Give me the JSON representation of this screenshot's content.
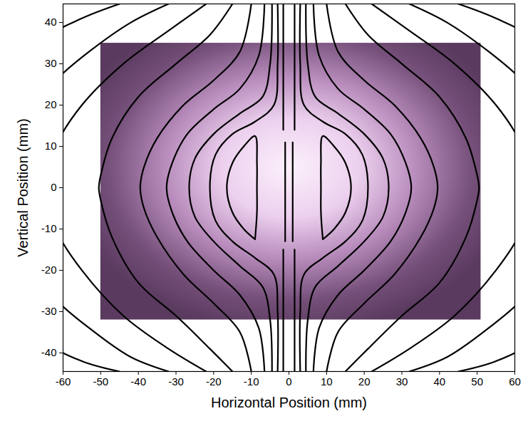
{
  "chart_data": {
    "type": "line",
    "xlabel": "Horizontal Position (mm)",
    "ylabel": "Vertical Position (mm)",
    "xlim": [
      -60,
      60
    ],
    "ylim": [
      -44.5,
      44.5
    ],
    "xticks": [
      -60,
      -50,
      -40,
      -30,
      -20,
      -10,
      0,
      10,
      20,
      30,
      40,
      50,
      60
    ],
    "yticks": [
      -40,
      -30,
      -20,
      -10,
      0,
      10,
      20,
      30,
      40
    ],
    "grid": false,
    "color": "#000000",
    "image": {
      "x": [
        -50,
        51
      ],
      "y": [
        -32,
        35
      ]
    },
    "series": [
      {
        "x": [
          9,
          12,
          15,
          16.5,
          15,
          12,
          9,
          8.5,
          8.5,
          8.5,
          9
        ],
        "y": [
          -12.5,
          -10,
          -6,
          0,
          6,
          10,
          12.5,
          6,
          0,
          -6,
          -12.5
        ]
      },
      {
        "x": [
          -9,
          -12,
          -15,
          -16.5,
          -15,
          -12,
          -9,
          -8.5,
          -8.5,
          -8.5,
          -9
        ],
        "y": [
          -12.5,
          -10,
          -6,
          0,
          6,
          10,
          12.5,
          6,
          0,
          -6,
          -12.5
        ]
      },
      {
        "x": [
          1.5,
          1.5
        ],
        "y": [
          44.5,
          14
        ]
      },
      {
        "x": [
          1.5,
          1.5
        ],
        "y": [
          -15,
          -44.5
        ]
      },
      {
        "x": [
          1,
          1
        ],
        "y": [
          11,
          -13
        ]
      },
      {
        "x": [
          -1.5,
          -1.5
        ],
        "y": [
          44.5,
          14
        ]
      },
      {
        "x": [
          -1.5,
          -1.5
        ],
        "y": [
          -15,
          -44.5
        ]
      },
      {
        "x": [
          -1,
          -1
        ],
        "y": [
          11,
          -13
        ]
      },
      {
        "x": [
          3,
          3,
          4,
          9,
          15,
          19.5,
          21,
          19.5,
          15,
          9,
          4,
          3,
          3
        ],
        "y": [
          44.5,
          30,
          20,
          16,
          13,
          8,
          0,
          -8,
          -13,
          -17,
          -21,
          -30,
          -44.5
        ]
      },
      {
        "x": [
          -3,
          -3,
          -4,
          -9,
          -15,
          -19.5,
          -21,
          -19.5,
          -15,
          -9,
          -4,
          -3,
          -3
        ],
        "y": [
          44.5,
          30,
          20,
          16,
          13,
          8,
          0,
          -8,
          -13,
          -17,
          -21,
          -30,
          -44.5
        ]
      },
      {
        "x": [
          4.5,
          5,
          7,
          13,
          20,
          25,
          26.5,
          25,
          20,
          13,
          7,
          5,
          4.5
        ],
        "y": [
          44.5,
          30,
          22,
          18,
          13,
          7,
          0,
          -7,
          -13,
          -19,
          -24,
          -32,
          -44.5
        ]
      },
      {
        "x": [
          -4.5,
          -5,
          -7,
          -13,
          -20,
          -25,
          -26.5,
          -25,
          -20,
          -13,
          -7,
          -5,
          -4.5
        ],
        "y": [
          44.5,
          30,
          22,
          18,
          13,
          7,
          0,
          -7,
          -13,
          -19,
          -24,
          -32,
          -44.5
        ]
      },
      {
        "x": [
          6.5,
          8,
          13,
          20,
          27,
          31,
          32.5,
          31,
          27,
          20,
          13,
          8,
          6.5
        ],
        "y": [
          44.5,
          32,
          24,
          19,
          13,
          6,
          0,
          -6,
          -13,
          -20,
          -26,
          -34,
          -44.5
        ]
      },
      {
        "x": [
          -6.5,
          -8,
          -13,
          -20,
          -27,
          -31,
          -32.5,
          -31,
          -27,
          -20,
          -13,
          -8,
          -6.5
        ],
        "y": [
          44.5,
          32,
          24,
          19,
          13,
          6,
          0,
          -6,
          -13,
          -20,
          -26,
          -34,
          -44.5
        ]
      },
      {
        "x": [
          10,
          13,
          20,
          28,
          35,
          38.5,
          39.5,
          38.5,
          35,
          28,
          20,
          13,
          10
        ],
        "y": [
          44.5,
          33,
          26,
          20,
          12,
          5,
          0,
          -5,
          -12,
          -21,
          -28,
          -35,
          -44.5
        ]
      },
      {
        "x": [
          -10,
          -13,
          -20,
          -28,
          -35,
          -38.5,
          -39.5,
          -38.5,
          -35,
          -28,
          -20,
          -13,
          -10
        ],
        "y": [
          44.5,
          33,
          26,
          20,
          12,
          5,
          0,
          -5,
          -12,
          -21,
          -28,
          -35,
          -44.5
        ]
      },
      {
        "x": [
          15,
          21,
          30,
          40,
          47,
          50,
          50.5,
          50,
          47,
          40,
          30,
          21,
          15
        ],
        "y": [
          44.5,
          37,
          30,
          22,
          12,
          3,
          0,
          -3,
          -12,
          -23,
          -31,
          -39,
          -44.5
        ]
      },
      {
        "x": [
          -15,
          -21,
          -30,
          -40,
          -47,
          -50,
          -50.5,
          -50,
          -47,
          -40,
          -30,
          -21,
          -15
        ],
        "y": [
          44.5,
          37,
          30,
          22,
          12,
          3,
          0,
          -3,
          -12,
          -23,
          -31,
          -39,
          -44.5
        ]
      },
      {
        "x": [
          22,
          32,
          44,
          55,
          62,
          65,
          62,
          55,
          44,
          32,
          22
        ],
        "y": [
          44.5,
          38,
          30,
          20,
          10,
          0,
          -10,
          -20,
          -31,
          -39,
          -44.5
        ]
      },
      {
        "x": [
          -22,
          -32,
          -44,
          -55,
          -62,
          -65,
          -62,
          -55,
          -44,
          -32,
          -22
        ],
        "y": [
          44.5,
          38,
          30,
          20,
          10,
          0,
          -10,
          -20,
          -31,
          -39,
          -44.5
        ]
      },
      {
        "x": [
          32,
          42,
          53,
          62,
          72,
          75,
          72,
          62,
          53,
          42,
          32
        ],
        "y": [
          44.5,
          40,
          33,
          26,
          15,
          0,
          -15,
          -27,
          -34,
          -41,
          -44.5
        ]
      },
      {
        "x": [
          -32,
          -42,
          -53,
          -62,
          -72,
          -75,
          -72,
          -62,
          -53,
          -42,
          -32
        ],
        "y": [
          44.5,
          40,
          33,
          26,
          15,
          0,
          -15,
          -27,
          -34,
          -41,
          -44.5
        ]
      },
      {
        "x": [
          45,
          55,
          65,
          80,
          85,
          80,
          65,
          55,
          45
        ],
        "y": [
          44.5,
          41,
          36,
          20,
          0,
          -20,
          -37,
          -42,
          -44.5
        ]
      },
      {
        "x": [
          -45,
          -55,
          -65,
          -80,
          -85,
          -80,
          -65,
          -55,
          -45
        ],
        "y": [
          44.5,
          41,
          36,
          20,
          0,
          -20,
          -37,
          -42,
          -44.5
        ]
      }
    ]
  }
}
